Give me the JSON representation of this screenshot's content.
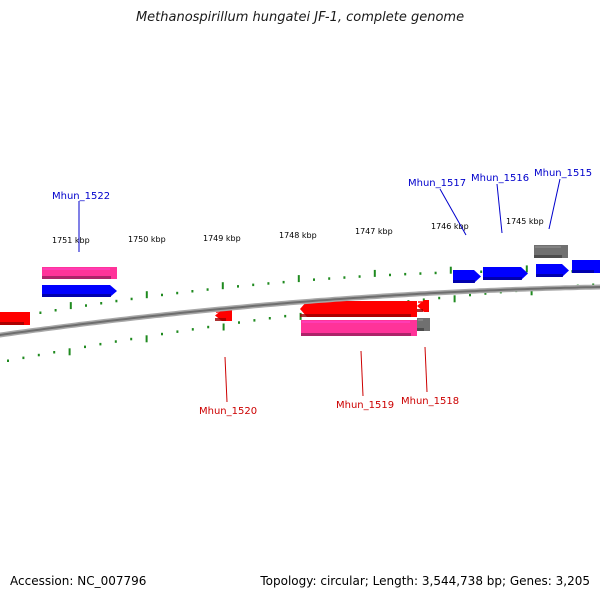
{
  "title": "Methanospirillum hungatei JF-1, complete genome",
  "footer": {
    "accession": "Accession: NC_007796",
    "summary": "Topology: circular; Length: 3,544,738 bp; Genes: 3,205"
  },
  "colors": {
    "backbone": "#8a8a8a",
    "tick": "#1f8a1f",
    "tick_label": "#000000",
    "forward_gene_label": "#0000cc",
    "reverse_gene_label": "#cc0000",
    "cds_forward": "#0000ff",
    "cds_reverse": "#ff0000",
    "gene_pink": "#ff3399",
    "gene_gray": "#707070"
  },
  "scale": {
    "unit": "kbp",
    "tick_labels": [
      "1751 kbp",
      "1750 kbp",
      "1749 kbp",
      "1748 kbp",
      "1747 kbp",
      "1746 kbp",
      "1745 kbp"
    ]
  },
  "gene_labels": {
    "forward": [
      "Mhun_1522",
      "Mhun_1517",
      "Mhun_1516",
      "Mhun_1515"
    ],
    "reverse": [
      "Mhun_1520",
      "Mhun_1519",
      "Mhun_1518"
    ]
  }
}
